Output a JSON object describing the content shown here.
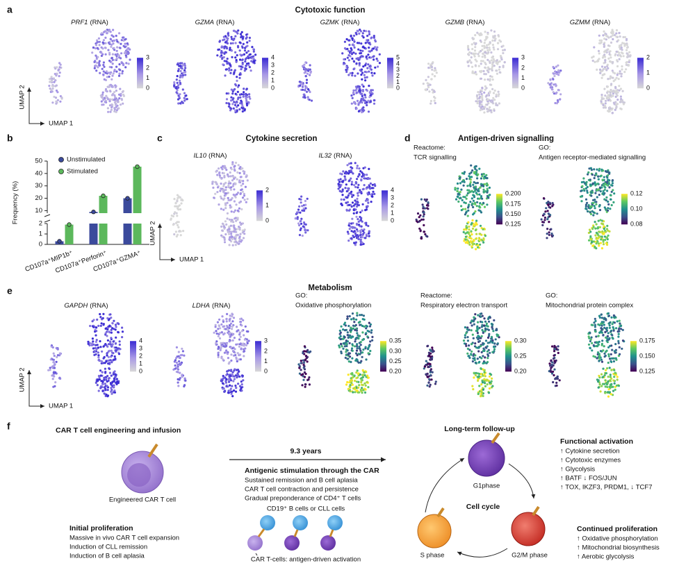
{
  "umap_axes": {
    "x": "UMAP 1",
    "y": "UMAP 2"
  },
  "a": {
    "label": "a",
    "title": "Cytotoxic function",
    "plots": [
      {
        "gene": "PRF1",
        "assay": "(RNA)",
        "colorbar": [
          "3",
          "2",
          "1",
          "0"
        ]
      },
      {
        "gene": "GZMA",
        "assay": "(RNA)",
        "colorbar": [
          "4",
          "3",
          "2",
          "1",
          "0"
        ]
      },
      {
        "gene": "GZMK",
        "assay": "(RNA)",
        "colorbar": [
          "5",
          "4",
          "3",
          "2",
          "1",
          "0"
        ]
      },
      {
        "gene": "GZMB",
        "assay": "(RNA)",
        "colorbar": [
          "3",
          "2",
          "1",
          "0"
        ]
      },
      {
        "gene": "GZMM",
        "assay": "(RNA)",
        "colorbar": [
          "2",
          "1",
          "0"
        ]
      }
    ]
  },
  "b": {
    "label": "b"
  },
  "chart_data": {
    "type": "bar",
    "ylabel": "Frequency (%)",
    "categories": [
      "CD107a⁺MIP1b⁺",
      "CD107a⁺Perforin⁺",
      "CD107a⁺GZMA⁺"
    ],
    "series": [
      {
        "name": "Unstimulated",
        "color": "#3b4a9c",
        "values": [
          0.3,
          9,
          20
        ]
      },
      {
        "name": "Stimulated",
        "color": "#5cb85c",
        "values": [
          1.9,
          22,
          45.5
        ]
      }
    ],
    "ylim": [
      0,
      50
    ],
    "axis_break": [
      2,
      8
    ],
    "yticks": [
      0,
      1,
      2,
      10,
      20,
      30,
      40,
      50
    ],
    "legend": "upper left"
  },
  "c": {
    "label": "c",
    "title": "Cytokine secretion",
    "plots": [
      {
        "gene": "IL10",
        "assay": "(RNA)",
        "colorbar": [
          "2",
          "1",
          "0"
        ]
      },
      {
        "gene": "IL32",
        "assay": "(RNA)",
        "colorbar": [
          "4",
          "3",
          "2",
          "1",
          "0"
        ]
      }
    ]
  },
  "d": {
    "label": "d",
    "title": "Antigen-driven signalling",
    "plots": [
      {
        "source": "Reactome:",
        "name": "TCR signalling",
        "colorbar": [
          "0.200",
          "0.175",
          "0.150",
          "0.125"
        ]
      },
      {
        "source": "GO:",
        "name": "Antigen receptor-mediated signalling",
        "colorbar": [
          "0.12",
          "0.10",
          "0.08"
        ]
      }
    ]
  },
  "e": {
    "label": "e",
    "title": "Metabolism",
    "plots": [
      {
        "gene": "GAPDH",
        "assay": "(RNA)",
        "colorbar": [
          "4",
          "3",
          "2",
          "1",
          "0"
        ]
      },
      {
        "gene": "LDHA",
        "assay": "(RNA)",
        "colorbar": [
          "3",
          "2",
          "1",
          "0"
        ]
      },
      {
        "source": "GO:",
        "name": "Oxidative phosphorylation",
        "colorbar": [
          "0.35",
          "0.30",
          "0.25",
          "0.20"
        ]
      },
      {
        "source": "Reactome:",
        "name": "Respiratory electron transport",
        "colorbar": [
          "0.30",
          "0.25",
          "0.20"
        ]
      },
      {
        "source": "GO:",
        "name": "Mitochondrial protein complex",
        "colorbar": [
          "0.175",
          "0.150",
          "0.125"
        ]
      }
    ]
  },
  "f": {
    "label": "f",
    "engineering": {
      "title": "CAR T cell engineering and infusion",
      "cell": "Engineered CAR T cell"
    },
    "initial": {
      "title": "Initial proliferation",
      "lines": [
        "Massive in vivo CAR T cell expansion",
        "Induction of CLL remission",
        "Induction of B cell aplasia"
      ]
    },
    "duration": "9.3 years",
    "antigenic": {
      "title": "Antigenic stimulation through the CAR",
      "lines": [
        "Sustained remission and B cell aplasia",
        "CAR T cell contraction and persistence",
        "Gradual preponderance of CD4⁺ T cells"
      ],
      "targets": "CD19⁺ B cells or CLL cells",
      "activation": "CAR T-cells: antigen-driven activation"
    },
    "followup": {
      "title": "Long-term follow-up",
      "cycle": "Cell cycle",
      "g1": "G1phase",
      "g2m": "G2/M phase",
      "s": "S phase"
    },
    "functional": {
      "title": "Functional activation",
      "lines": [
        "↑ Cytokine secretion",
        "↑ Cytotoxic enzymes",
        "↑ Glycolysis",
        "↑ BATF ↓ FOS/JUN",
        "↑ TOX, IKZF3, PRDM1, ↓ TCF7"
      ]
    },
    "continued": {
      "title": "Continued proliferation",
      "lines": [
        "↑ Oxidative phosphorylation",
        "↑ Mitochondrial biosynthesis",
        "↑ Aerobic glycolysis"
      ]
    }
  }
}
